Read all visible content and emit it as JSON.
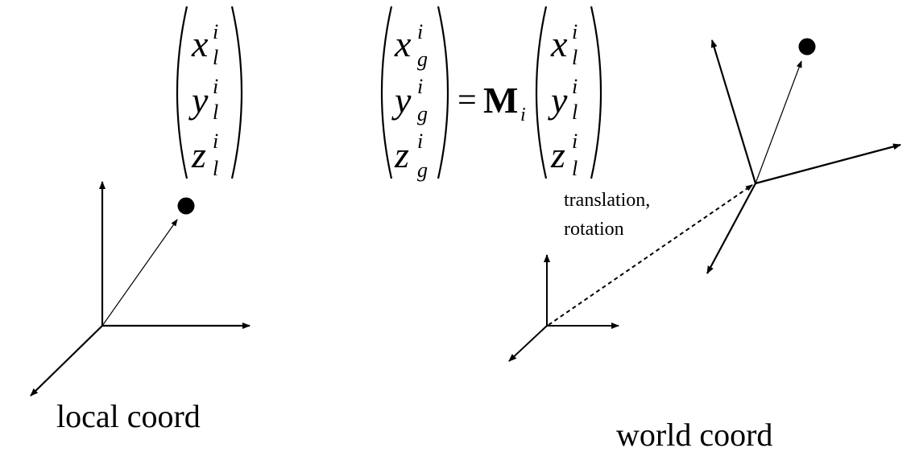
{
  "equation": {
    "local_vector": [
      {
        "base": "x",
        "sup": "i",
        "sub": "l"
      },
      {
        "base": "y",
        "sup": "i",
        "sub": "l"
      },
      {
        "base": "z",
        "sup": "i",
        "sub": "l"
      }
    ],
    "global_vector": [
      {
        "base": "x",
        "sup": "i",
        "sub": "g"
      },
      {
        "base": "y",
        "sup": "i",
        "sub": "g"
      },
      {
        "base": "z",
        "sup": "i",
        "sub": "g"
      }
    ],
    "equals": "=",
    "matrix_symbol": "M",
    "matrix_subscript": "i",
    "rhs_vector": [
      {
        "base": "x",
        "sup": "i",
        "sub": "l"
      },
      {
        "base": "y",
        "sup": "i",
        "sub": "l"
      },
      {
        "base": "z",
        "sup": "i",
        "sub": "l"
      }
    ]
  },
  "labels": {
    "local_caption": "local coord",
    "world_caption": "world coord",
    "transform_line1": "translation,",
    "transform_line2": "rotation"
  }
}
